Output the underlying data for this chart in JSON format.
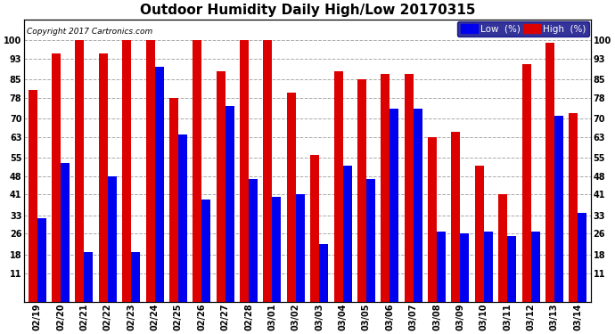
{
  "title": "Outdoor Humidity Daily High/Low 20170315",
  "copyright": "Copyright 2017 Cartronics.com",
  "yticks": [
    11,
    18,
    26,
    33,
    41,
    48,
    55,
    63,
    70,
    78,
    85,
    93,
    100
  ],
  "background_color": "#ffffff",
  "bar_color_low": "#0000ee",
  "bar_color_high": "#dd0000",
  "legend_low_label": "Low  (%)",
  "legend_high_label": "High  (%)",
  "dates": [
    "02/19",
    "02/20",
    "02/21",
    "02/22",
    "02/23",
    "02/24",
    "02/25",
    "02/26",
    "02/27",
    "02/28",
    "03/01",
    "03/02",
    "03/03",
    "03/04",
    "03/05",
    "03/06",
    "03/07",
    "03/08",
    "03/09",
    "03/10",
    "03/11",
    "03/12",
    "03/13",
    "03/14"
  ],
  "high": [
    81,
    95,
    100,
    95,
    100,
    100,
    78,
    100,
    88,
    100,
    100,
    80,
    56,
    88,
    85,
    87,
    87,
    63,
    65,
    52,
    41,
    91,
    99,
    72
  ],
  "low": [
    32,
    53,
    19,
    48,
    19,
    90,
    64,
    39,
    75,
    47,
    40,
    41,
    22,
    52,
    47,
    74,
    74,
    27,
    26,
    27,
    25,
    27,
    71,
    34
  ],
  "figsize": [
    6.9,
    3.75
  ],
  "dpi": 100,
  "title_fontsize": 11,
  "tick_fontsize": 7,
  "ytick_right_fontsize": 7,
  "copyright_fontsize": 6.5,
  "ylim": [
    0,
    108
  ],
  "bar_width": 0.38
}
